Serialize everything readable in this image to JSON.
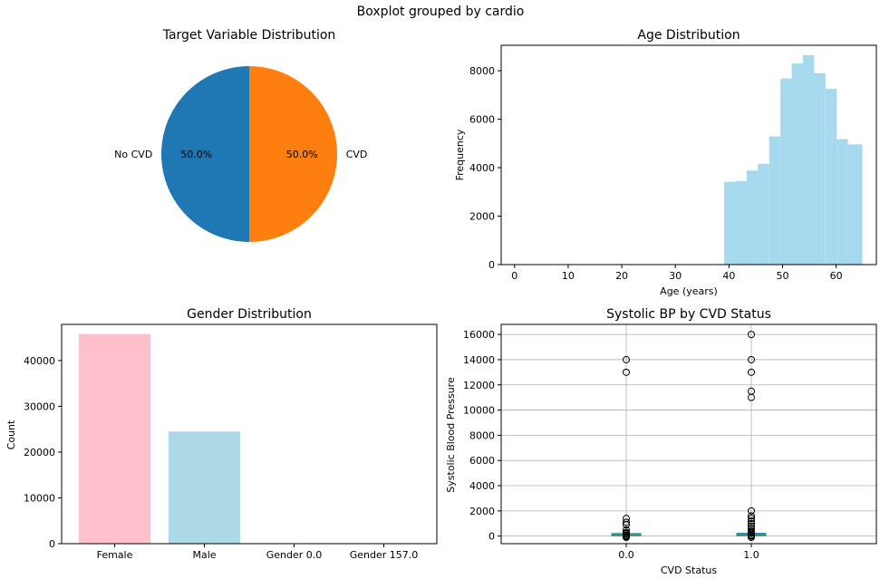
{
  "figure_title": "Boxplot grouped by cardio",
  "chart_data": [
    {
      "type": "pie",
      "title": "Target Variable Distribution",
      "labels": [
        "No CVD",
        "CVD"
      ],
      "values": [
        50.0,
        50.0
      ],
      "pct_labels": [
        "50.0%",
        "50.0%"
      ],
      "colors": [
        "#1f77b4",
        "#ff7f0e"
      ]
    },
    {
      "type": "bar",
      "subtype": "histogram",
      "title": "Age Distribution",
      "xlabel": "Age (years)",
      "ylabel": "Frequency",
      "xlim": [
        -2.5,
        67.5
      ],
      "ylim": [
        0,
        9050
      ],
      "xticks": [
        0,
        10,
        20,
        30,
        40,
        50,
        60
      ],
      "yticks": [
        0,
        2000,
        4000,
        6000,
        8000
      ],
      "color": "#a6d9ed",
      "bins": [
        {
          "x0": 39.1,
          "x1": 41.2,
          "count": 3420
        },
        {
          "x0": 41.2,
          "x1": 43.3,
          "count": 3450
        },
        {
          "x0": 43.3,
          "x1": 45.4,
          "count": 3880
        },
        {
          "x0": 45.4,
          "x1": 47.5,
          "count": 4160
        },
        {
          "x0": 47.5,
          "x1": 49.6,
          "count": 5290
        },
        {
          "x0": 49.6,
          "x1": 51.7,
          "count": 7680
        },
        {
          "x0": 51.7,
          "x1": 53.8,
          "count": 8300
        },
        {
          "x0": 53.8,
          "x1": 55.9,
          "count": 8640
        },
        {
          "x0": 55.9,
          "x1": 58.0,
          "count": 7900
        },
        {
          "x0": 58.0,
          "x1": 60.1,
          "count": 7250
        },
        {
          "x0": 60.1,
          "x1": 62.2,
          "count": 5180
        },
        {
          "x0": 62.2,
          "x1": 64.9,
          "count": 4960
        }
      ]
    },
    {
      "type": "bar",
      "title": "Gender Distribution",
      "xlabel": "",
      "ylabel": "Count",
      "ylim": [
        0,
        47900
      ],
      "yticks": [
        0,
        10000,
        20000,
        30000,
        40000
      ],
      "categories": [
        "Female",
        "Male",
        "Gender 0.0",
        "Gender 157.0"
      ],
      "values": [
        45800,
        24500,
        1,
        1
      ],
      "colors": [
        "#ffc0cb",
        "#add8e6",
        "#add8e6",
        "#add8e6"
      ]
    },
    {
      "type": "boxplot",
      "title": "Systolic BP by CVD Status",
      "xlabel": "CVD Status",
      "ylabel": "Systolic Blood Pressure",
      "ylim": [
        -600,
        16800
      ],
      "yticks": [
        0,
        2000,
        4000,
        6000,
        8000,
        10000,
        12000,
        14000,
        16000
      ],
      "categories": [
        "0.0",
        "1.0"
      ],
      "grid": true,
      "boxes": [
        {
          "q1": 110,
          "median": 120,
          "q3": 130,
          "whislo": 80,
          "whishi": 160,
          "fliers": [
            14000,
            13000,
            1400,
            1100,
            900,
            500,
            300,
            220,
            200,
            180,
            70,
            50,
            20,
            10,
            0,
            -50,
            -100
          ]
        },
        {
          "q1": 120,
          "median": 130,
          "q3": 150,
          "whislo": 90,
          "whishi": 190,
          "fliers": [
            16000,
            14000,
            13000,
            11500,
            11000,
            2000,
            1600,
            1400,
            1200,
            1000,
            800,
            600,
            400,
            300,
            240,
            220,
            80,
            50,
            20,
            0,
            -100
          ]
        }
      ]
    }
  ]
}
